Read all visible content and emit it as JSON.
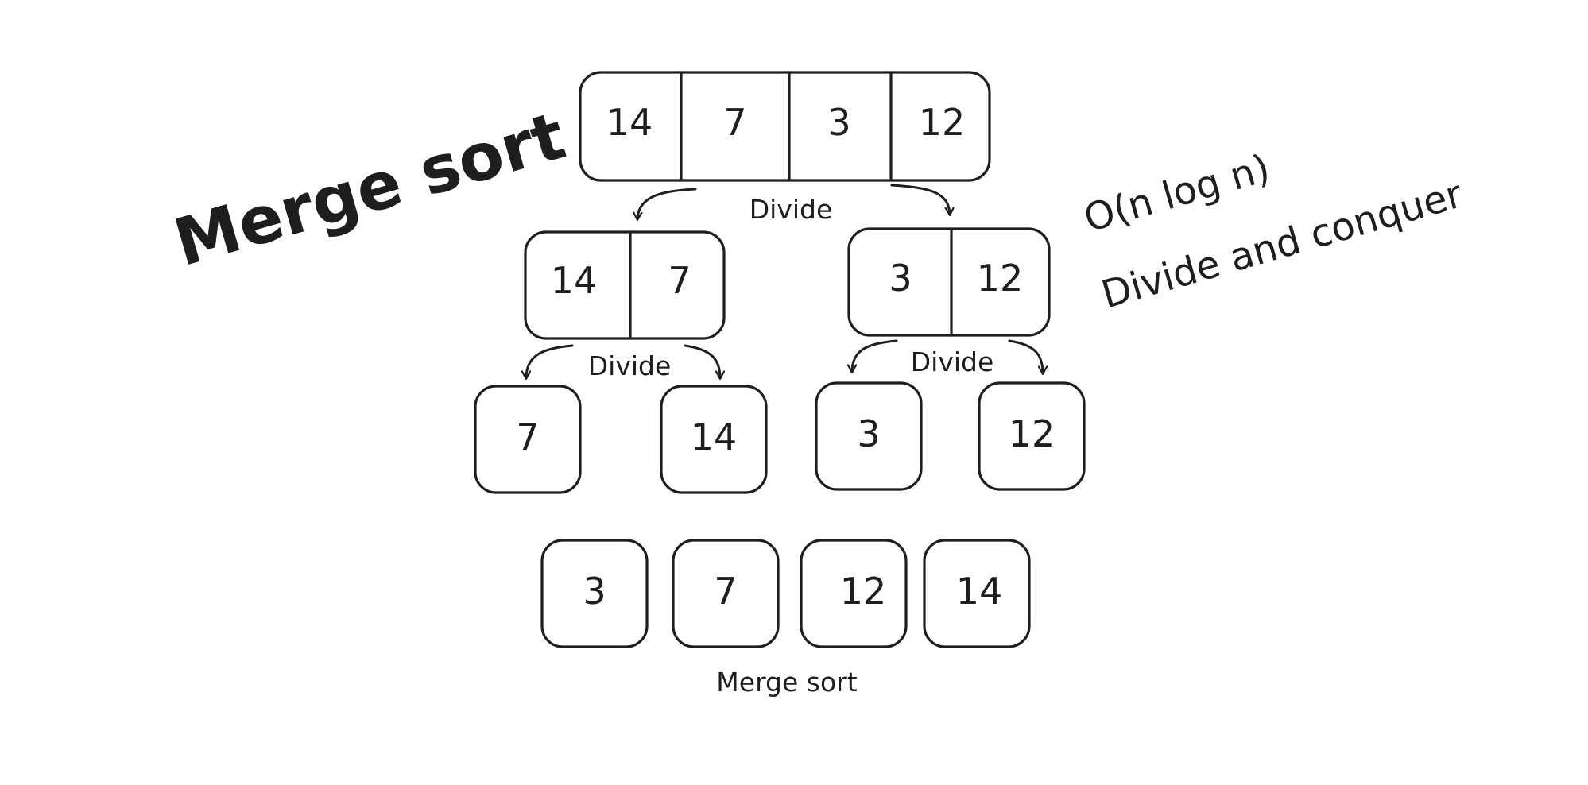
{
  "title": "Merge sort",
  "complexity": "O(n log n)",
  "paradigm": "Divide and conquer",
  "caption": "Merge sort",
  "divide_label": "Divide",
  "input_array": [
    "14",
    "7",
    "3",
    "12"
  ],
  "left_half": [
    "14",
    "7"
  ],
  "right_half": [
    "3",
    "12"
  ],
  "leaves": [
    "7",
    "14",
    "3",
    "12"
  ],
  "sorted_result": [
    "3",
    "7",
    "12",
    "14"
  ],
  "colors": {
    "stroke": "#1e1e1e",
    "background": "#ffffff"
  }
}
